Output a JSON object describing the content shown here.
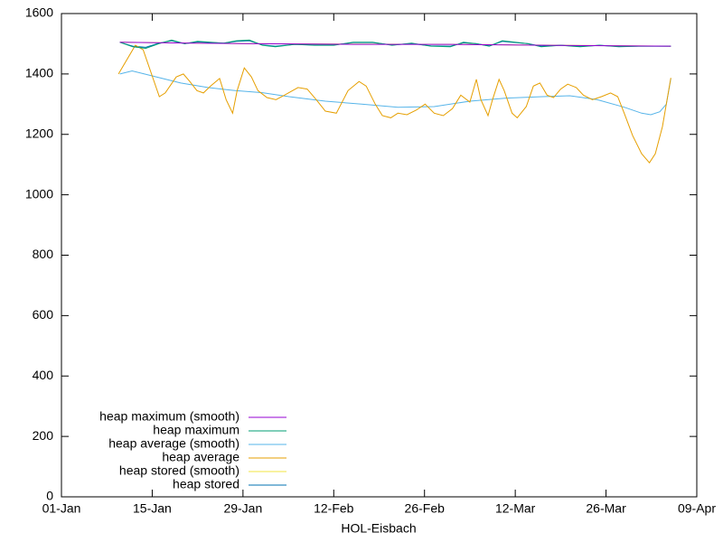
{
  "chart_data": {
    "type": "line",
    "xlabel": "HOL-Eisbach",
    "xlim": [
      0,
      98
    ],
    "xticks": [
      {
        "value": 0,
        "label": "01-Jan"
      },
      {
        "value": 14,
        "label": "15-Jan"
      },
      {
        "value": 28,
        "label": "29-Jan"
      },
      {
        "value": 42,
        "label": "12-Feb"
      },
      {
        "value": 56,
        "label": "26-Feb"
      },
      {
        "value": 70,
        "label": "12-Mar"
      },
      {
        "value": 84,
        "label": "26-Mar"
      },
      {
        "value": 98,
        "label": "09-Apr"
      }
    ],
    "ylim": [
      0,
      1600
    ],
    "yticks": [
      0,
      200,
      400,
      600,
      800,
      1000,
      1200,
      1400,
      1600
    ],
    "legend": "bottom-left",
    "series": [
      {
        "name": "heap maximum (smooth)",
        "color": "#9400d3",
        "x": [
          9,
          20,
          30,
          45,
          60,
          75,
          94
        ],
        "values": [
          1505,
          1502,
          1500,
          1498,
          1498,
          1495,
          1492
        ]
      },
      {
        "name": "heap maximum",
        "color": "#009e73",
        "x": [
          9,
          11,
          13,
          15,
          17,
          19,
          21,
          23,
          25,
          27,
          29,
          31,
          33,
          36,
          39,
          42,
          45,
          48,
          51,
          54,
          57,
          60,
          62,
          64,
          66,
          68,
          70,
          72,
          74,
          77,
          80,
          83,
          86,
          89,
          94
        ],
        "values": [
          1505,
          1490,
          1485,
          1500,
          1512,
          1500,
          1508,
          1505,
          1502,
          1510,
          1512,
          1495,
          1490,
          1498,
          1495,
          1495,
          1505,
          1505,
          1495,
          1502,
          1492,
          1490,
          1505,
          1500,
          1492,
          1510,
          1505,
          1500,
          1490,
          1495,
          1490,
          1495,
          1490,
          1492,
          1492
        ]
      },
      {
        "name": "heap average (smooth)",
        "color": "#56b4e9",
        "x": [
          9,
          10.9,
          12.8,
          15.6,
          18.4,
          22.6,
          26.8,
          31,
          35.1,
          40.7,
          46.3,
          51.9,
          57.5,
          63,
          68.6,
          74.2,
          78.4,
          82.6,
          86.8,
          89.5,
          90.9,
          92.3,
          93.3,
          94
        ],
        "values": [
          1400,
          1410,
          1400,
          1385,
          1370,
          1355,
          1345,
          1338,
          1325,
          1310,
          1300,
          1290,
          1292,
          1310,
          1320,
          1325,
          1328,
          1315,
          1290,
          1270,
          1265,
          1275,
          1300,
          1385
        ]
      },
      {
        "name": "heap average",
        "color": "#e69f00",
        "x": [
          8.8,
          11.4,
          12.6,
          15.1,
          16,
          17.7,
          18.8,
          19.8,
          20.9,
          21.9,
          23,
          24.4,
          25.4,
          26.4,
          27.1,
          28.2,
          29.3,
          30.3,
          31.7,
          33.1,
          34.4,
          36.5,
          37.9,
          39.3,
          40.7,
          42.4,
          44.2,
          45.9,
          47,
          48.4,
          49.5,
          50.8,
          51.9,
          53.3,
          54.7,
          56.1,
          57.5,
          58.9,
          60.3,
          61.6,
          63,
          64,
          64.7,
          65.8,
          66.5,
          67.5,
          68.3,
          69.5,
          70.3,
          71.7,
          72.8,
          73.8,
          74.9,
          75.9,
          77,
          78.1,
          79.4,
          80.5,
          81.9,
          83.3,
          84.7,
          85.8,
          86.8,
          88.1,
          89.5,
          90.7,
          91.6,
          92.7,
          94
        ],
        "values": [
          1400,
          1495,
          1480,
          1325,
          1337,
          1390,
          1400,
          1375,
          1345,
          1337,
          1360,
          1385,
          1315,
          1270,
          1345,
          1420,
          1390,
          1345,
          1322,
          1315,
          1330,
          1355,
          1350,
          1315,
          1277,
          1270,
          1345,
          1375,
          1360,
          1300,
          1262,
          1255,
          1270,
          1265,
          1280,
          1300,
          1270,
          1262,
          1285,
          1330,
          1307,
          1382,
          1315,
          1262,
          1315,
          1382,
          1345,
          1270,
          1255,
          1292,
          1360,
          1370,
          1330,
          1322,
          1350,
          1366,
          1355,
          1330,
          1315,
          1325,
          1337,
          1325,
          1270,
          1196,
          1136,
          1106,
          1136,
          1226,
          1387
        ]
      },
      {
        "name": "heap stored (smooth)",
        "color": "#f0e442",
        "x": [
          9,
          30,
          60,
          94
        ],
        "values": [
          1505,
          1500,
          1498,
          1492
        ]
      },
      {
        "name": "heap stored",
        "color": "#0072b2",
        "x": [
          9,
          11,
          13,
          15,
          17,
          19,
          21,
          23,
          25,
          27,
          29,
          31,
          33,
          36,
          39,
          42,
          45,
          48,
          51,
          54,
          57,
          60,
          62,
          64,
          66,
          68,
          70,
          72,
          74,
          77,
          80,
          83,
          86,
          89,
          94
        ],
        "values": [
          1505,
          1492,
          1488,
          1502,
          1510,
          1500,
          1506,
          1504,
          1502,
          1508,
          1510,
          1496,
          1492,
          1498,
          1496,
          1496,
          1504,
          1504,
          1496,
          1500,
          1493,
          1492,
          1503,
          1500,
          1493,
          1508,
          1504,
          1500,
          1492,
          1495,
          1491,
          1495,
          1491,
          1492,
          1492
        ]
      }
    ]
  }
}
